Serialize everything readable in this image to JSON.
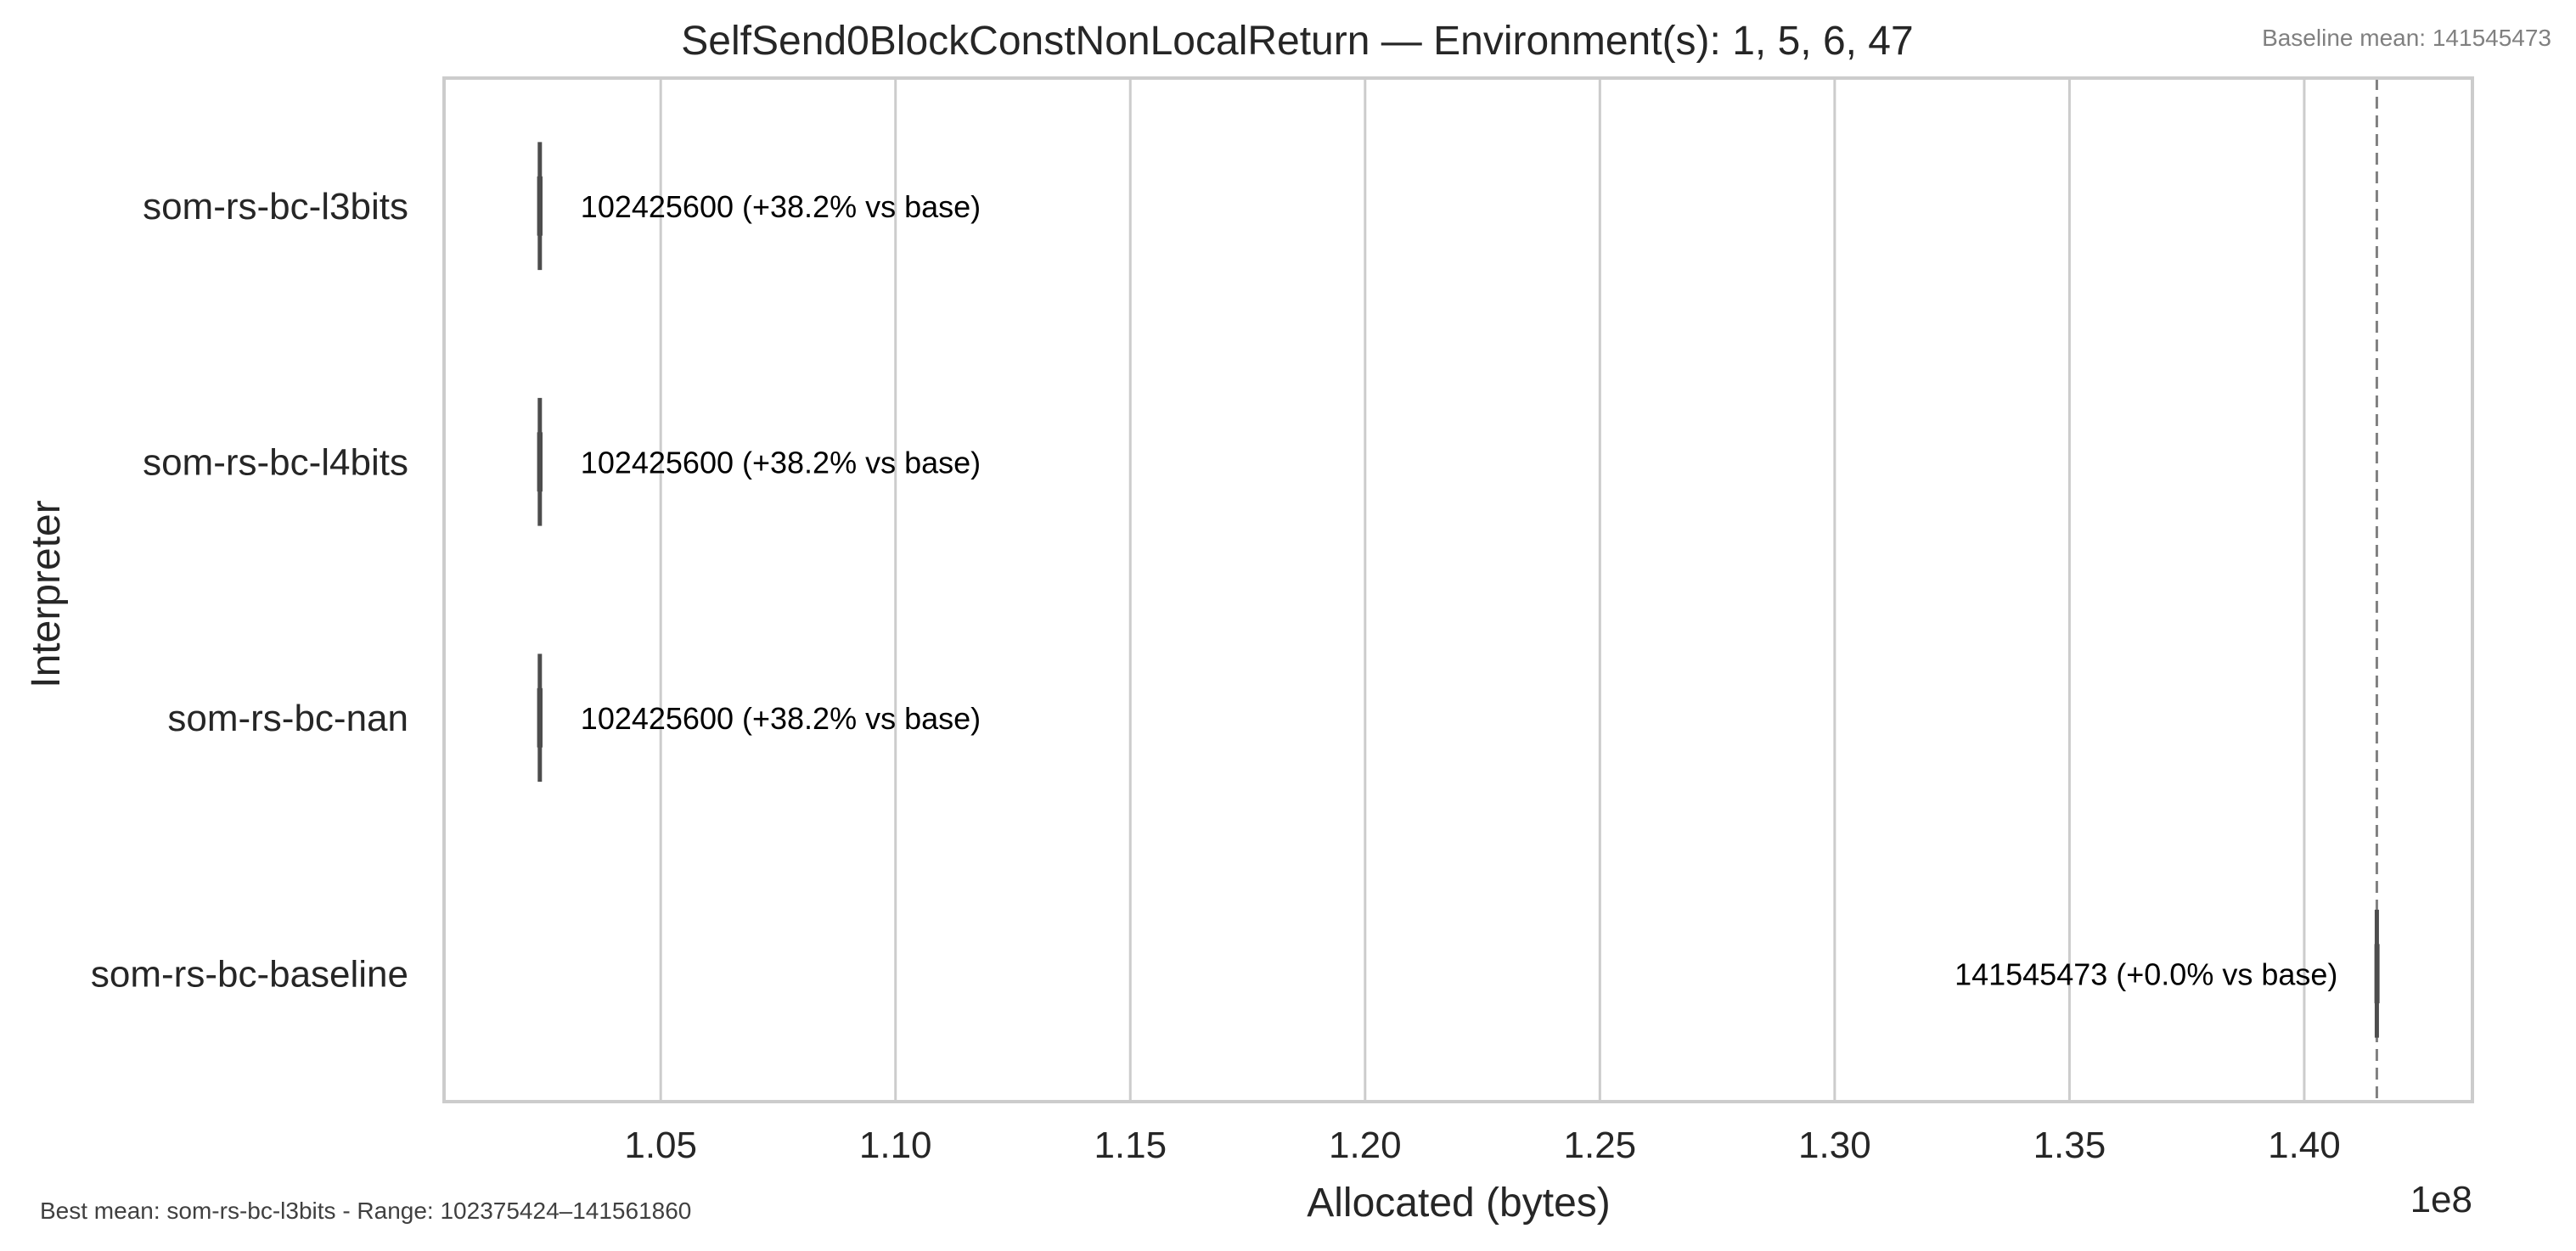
{
  "chart_data": {
    "type": "boxplot-horizontal",
    "title": "SelfSend0BlockConstNonLocalReturn — Environment(s): 1, 5, 6, 47",
    "xlabel": "Allocated (bytes)",
    "ylabel": "Interpreter",
    "x_offset_label": "1e8",
    "xlim": [
      1.00386,
      1.43581
    ],
    "xticks": [
      1.05,
      1.1,
      1.15,
      1.2,
      1.25,
      1.3,
      1.35,
      1.4
    ],
    "xtick_labels": [
      "1.05",
      "1.10",
      "1.15",
      "1.20",
      "1.25",
      "1.30",
      "1.35",
      "1.40"
    ],
    "grid": true,
    "categories": [
      "som-rs-bc-l3bits",
      "som-rs-bc-l4bits",
      "som-rs-bc-nan",
      "som-rs-bc-baseline"
    ],
    "series": [
      {
        "name": "som-rs-bc-l3bits",
        "box_min": 1.02375424,
        "q1": 1.02413,
        "median": 1.024256,
        "q3": 1.02438,
        "box_max": 1.02476,
        "mean": 102425600,
        "label": "102425600  (+38.2% vs base)"
      },
      {
        "name": "som-rs-bc-l4bits",
        "box_min": 1.02375424,
        "q1": 1.02413,
        "median": 1.024256,
        "q3": 1.02438,
        "box_max": 1.02476,
        "mean": 102425600,
        "label": "102425600  (+38.2% vs base)"
      },
      {
        "name": "som-rs-bc-nan",
        "box_min": 1.02375424,
        "q1": 1.02413,
        "median": 1.024256,
        "q3": 1.02438,
        "box_max": 1.02476,
        "mean": 102425600,
        "label": "102425600  (+38.2% vs base)"
      },
      {
        "name": "som-rs-bc-baseline",
        "box_min": 1.4153,
        "q1": 1.4154,
        "median": 1.41545473,
        "q3": 1.41551,
        "box_max": 1.4156186,
        "mean": 141545473,
        "label": "141545473  (+0.0% vs base)"
      }
    ],
    "baseline_line": 1.41545473,
    "annotations": {
      "baseline_note": "Baseline mean: 141545473",
      "footer_note": "Best mean: som-rs-bc-l3bits - Range: 102375424–141561860"
    },
    "colors": {
      "box": "#4d4d4d",
      "grid": "#cccccc",
      "frame": "#cccccc",
      "baseline_line": "#808080"
    }
  }
}
